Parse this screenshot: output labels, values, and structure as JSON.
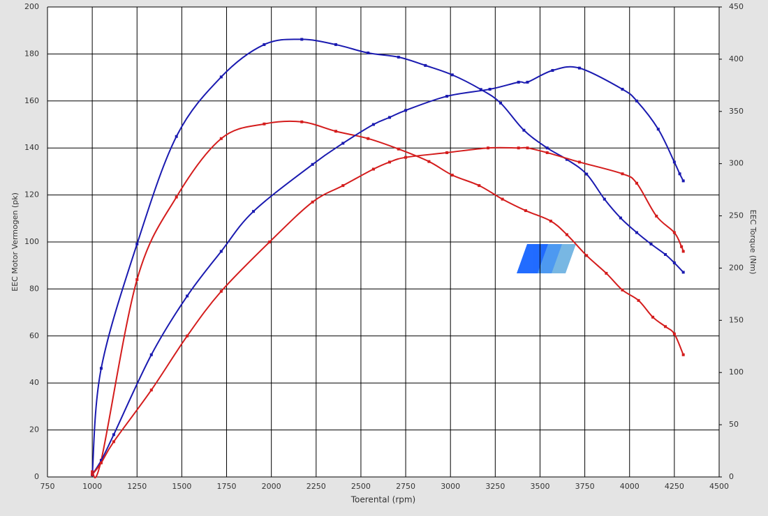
{
  "chart_data": {
    "type": "line",
    "x_label": "Toerental (rpm)",
    "y_label": "EEC Motor Vermogen (pk)",
    "y2_label": "EEC Torque (Nm)",
    "xlim": [
      750,
      4500
    ],
    "xticks": [
      750,
      1000,
      1250,
      1500,
      1750,
      2000,
      2250,
      2500,
      2750,
      3000,
      3250,
      3500,
      3750,
      4000,
      4250,
      4500
    ],
    "ylim": [
      0,
      200
    ],
    "yticks": [
      0,
      20,
      40,
      60,
      80,
      100,
      120,
      140,
      160,
      180,
      200
    ],
    "y2lim": [
      0,
      450
    ],
    "y2ticks": [
      0,
      50,
      100,
      150,
      200,
      250,
      300,
      350,
      400,
      450
    ],
    "grid": true,
    "series": [
      {
        "color": "#1a1ab0",
        "axis": "y2",
        "x": [
          1000,
          1050,
          1250,
          1470,
          1720,
          1960,
          2170,
          2360,
          2540,
          2710,
          2860,
          3010,
          3170,
          3280,
          3410,
          3540,
          3650,
          3760,
          3860,
          3950,
          4040,
          4120,
          4200,
          4250,
          4300
        ],
        "values": [
          2,
          104,
          223,
          326,
          383,
          414,
          419,
          414,
          406,
          402,
          394,
          385,
          371,
          358,
          332,
          315,
          304,
          290,
          266,
          248,
          234,
          223,
          213,
          205,
          196
        ]
      },
      {
        "color": "#d41c1c",
        "axis": "y2",
        "x": [
          1000,
          1050,
          1250,
          1470,
          1720,
          1960,
          2170,
          2360,
          2540,
          2710,
          2880,
          3010,
          3160,
          3290,
          3420,
          3560,
          3650,
          3760,
          3870,
          3960,
          4050,
          4130,
          4200,
          4250,
          4300
        ],
        "values": [
          5,
          16,
          189,
          268,
          324,
          338,
          340,
          331,
          324,
          314,
          302,
          289,
          279,
          266,
          255,
          245,
          232,
          212,
          195,
          179,
          169,
          153,
          144,
          137,
          117
        ]
      },
      {
        "color": "#1a1ab0",
        "x": [
          1000,
          1050,
          1120,
          1330,
          1530,
          1720,
          1900,
          2230,
          2400,
          2570,
          2660,
          2750,
          2980,
          3220,
          3380,
          3430,
          3570,
          3720,
          3960,
          4040,
          4160,
          4250,
          4280,
          4300
        ],
        "values": [
          1,
          7,
          18,
          52,
          77,
          96,
          113,
          133,
          142,
          150,
          153,
          156,
          162,
          165,
          168,
          168,
          173,
          174,
          165,
          160,
          148,
          134,
          129,
          126
        ]
      },
      {
        "color": "#d41c1c",
        "x": [
          1000,
          1050,
          1120,
          1330,
          1530,
          1720,
          1990,
          2230,
          2400,
          2570,
          2660,
          2750,
          2980,
          3210,
          3380,
          3430,
          3540,
          3720,
          3960,
          4040,
          4150,
          4250,
          4290,
          4300
        ],
        "values": [
          1,
          6,
          15,
          37,
          60,
          79,
          100,
          117,
          124,
          131,
          134,
          136,
          138,
          140,
          140,
          140,
          138,
          134,
          129,
          125,
          111,
          104,
          98,
          96
        ]
      }
    ]
  }
}
